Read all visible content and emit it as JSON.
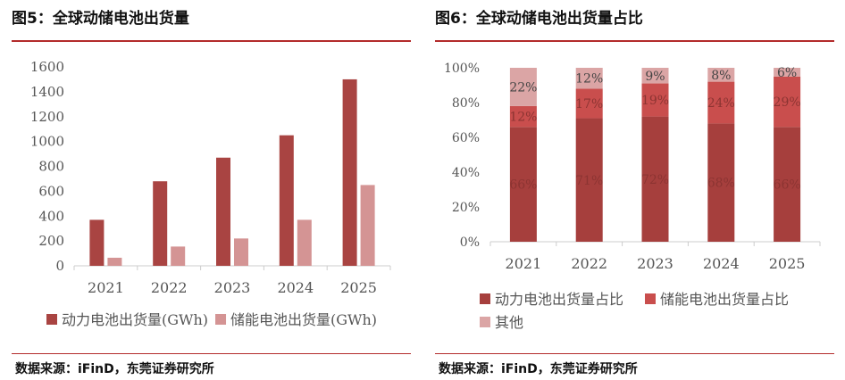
{
  "sources": [
    "数据来源：iFinD，东莞证券研究所",
    "数据来源：iFinD，东莞证券研究所"
  ],
  "chart_data": [
    {
      "type": "bar",
      "title": "图5：全球动储电池出货量",
      "categories": [
        "2021",
        "2022",
        "2023",
        "2024",
        "2025"
      ],
      "series": [
        {
          "name": "动力电池出货量(GWh)",
          "values": [
            370,
            680,
            870,
            1050,
            1500
          ],
          "color": "#a94442"
        },
        {
          "name": "储能电池出货量(GWh)",
          "values": [
            65,
            155,
            220,
            370,
            650
          ],
          "color": "#d49494"
        }
      ],
      "yticks": [
        "0",
        "200",
        "400",
        "600",
        "800",
        "1000",
        "1200",
        "1400",
        "1600"
      ],
      "ylim": [
        0,
        1600
      ],
      "grid": false,
      "legend": "bottom"
    },
    {
      "type": "bar",
      "stacked": true,
      "title": "图6：全球动储电池出货量占比",
      "categories": [
        "2021",
        "2022",
        "2023",
        "2024",
        "2025"
      ],
      "series": [
        {
          "name": "动力电池出货量占比",
          "values": [
            66,
            71,
            72,
            68,
            66
          ],
          "labels": [
            "66%",
            "71%",
            "72%",
            "68%",
            "66%"
          ],
          "color": "#a63f3d"
        },
        {
          "name": "储能电池出货量占比",
          "values": [
            12,
            17,
            19,
            24,
            29
          ],
          "labels": [
            "12%",
            "17%",
            "19%",
            "24%",
            "29%"
          ],
          "color": "#c94e4d"
        },
        {
          "name": "其他",
          "values": [
            22,
            12,
            9,
            8,
            6
          ],
          "labels": [
            "22%",
            "12%",
            "9%",
            "8%",
            "6%"
          ],
          "color": "#dba5a5"
        }
      ],
      "yticks": [
        "0%",
        "20%",
        "40%",
        "60%",
        "80%",
        "100%"
      ],
      "ylim": [
        0,
        100
      ],
      "grid": false,
      "legend": "bottom"
    }
  ]
}
